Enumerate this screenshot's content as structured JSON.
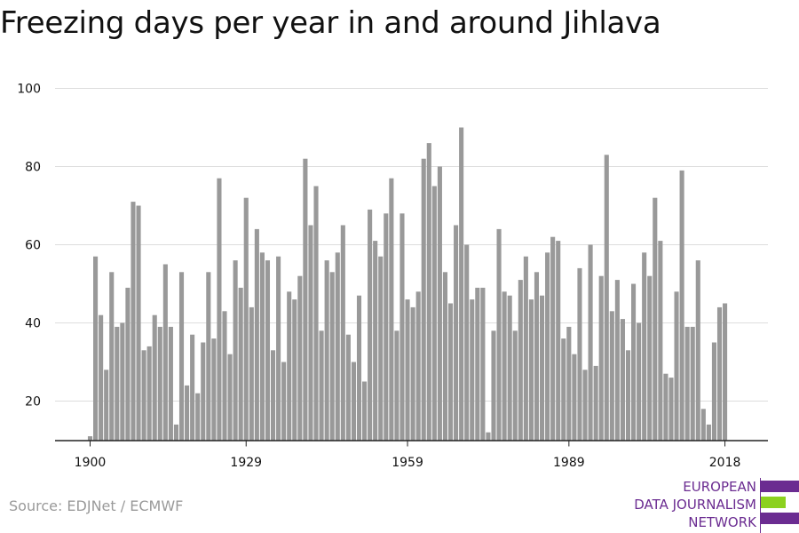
{
  "title": "Freezing days per year in and around Jihlava",
  "source": "Source: EDJNet / ECMWF",
  "logo": {
    "lines": [
      "EUROPEAN",
      "DATA JOURNALISM",
      "NETWORK"
    ],
    "colors": {
      "purple": "#6b2c91",
      "green": "#8cd11f"
    }
  },
  "colors": {
    "bar": "#999999",
    "grid": "#dddddd",
    "axis": "#222222",
    "tick_text": "#111111"
  },
  "chart_data": {
    "type": "bar",
    "title": "Freezing days per year in and around Jihlava",
    "xlabel": "",
    "ylabel": "",
    "ylim": [
      10,
      100
    ],
    "yticks": [
      20,
      40,
      60,
      80,
      100
    ],
    "xticks": [
      1900,
      1929,
      1959,
      1989,
      2018
    ],
    "grid": true,
    "x": [
      1900,
      1901,
      1902,
      1903,
      1904,
      1905,
      1906,
      1907,
      1908,
      1909,
      1910,
      1911,
      1912,
      1913,
      1914,
      1915,
      1916,
      1917,
      1918,
      1919,
      1920,
      1921,
      1922,
      1923,
      1924,
      1925,
      1926,
      1927,
      1928,
      1929,
      1930,
      1931,
      1932,
      1933,
      1934,
      1935,
      1936,
      1937,
      1938,
      1939,
      1940,
      1941,
      1942,
      1943,
      1944,
      1945,
      1946,
      1947,
      1948,
      1949,
      1950,
      1951,
      1952,
      1953,
      1954,
      1955,
      1956,
      1957,
      1958,
      1959,
      1960,
      1961,
      1962,
      1963,
      1964,
      1965,
      1966,
      1967,
      1968,
      1969,
      1970,
      1971,
      1972,
      1973,
      1974,
      1975,
      1976,
      1977,
      1978,
      1979,
      1980,
      1981,
      1982,
      1983,
      1984,
      1985,
      1986,
      1987,
      1988,
      1989,
      1990,
      1991,
      1992,
      1993,
      1994,
      1995,
      1996,
      1997,
      1998,
      1999,
      2000,
      2001,
      2002,
      2003,
      2004,
      2005,
      2006,
      2007,
      2008,
      2009,
      2010,
      2011,
      2012,
      2013,
      2014,
      2015,
      2016,
      2017,
      2018
    ],
    "values": [
      11,
      57,
      42,
      28,
      53,
      39,
      40,
      49,
      71,
      70,
      33,
      34,
      42,
      39,
      55,
      39,
      14,
      53,
      24,
      37,
      22,
      35,
      53,
      36,
      77,
      43,
      32,
      56,
      49,
      72,
      44,
      64,
      58,
      56,
      33,
      57,
      30,
      48,
      46,
      52,
      82,
      65,
      75,
      38,
      56,
      53,
      58,
      65,
      37,
      30,
      47,
      25,
      69,
      61,
      57,
      68,
      77,
      38,
      68,
      46,
      44,
      48,
      82,
      86,
      75,
      80,
      53,
      45,
      65,
      90,
      60,
      46,
      49,
      49,
      12,
      38,
      64,
      48,
      47,
      38,
      51,
      57,
      46,
      53,
      47,
      58,
      62,
      61,
      36,
      39,
      32,
      54,
      28,
      60,
      29,
      52,
      83,
      43,
      51,
      41,
      33,
      50,
      40,
      58,
      52,
      72,
      61,
      27,
      26,
      48,
      79,
      39,
      39,
      56,
      18,
      14,
      35,
      44,
      45
    ]
  }
}
